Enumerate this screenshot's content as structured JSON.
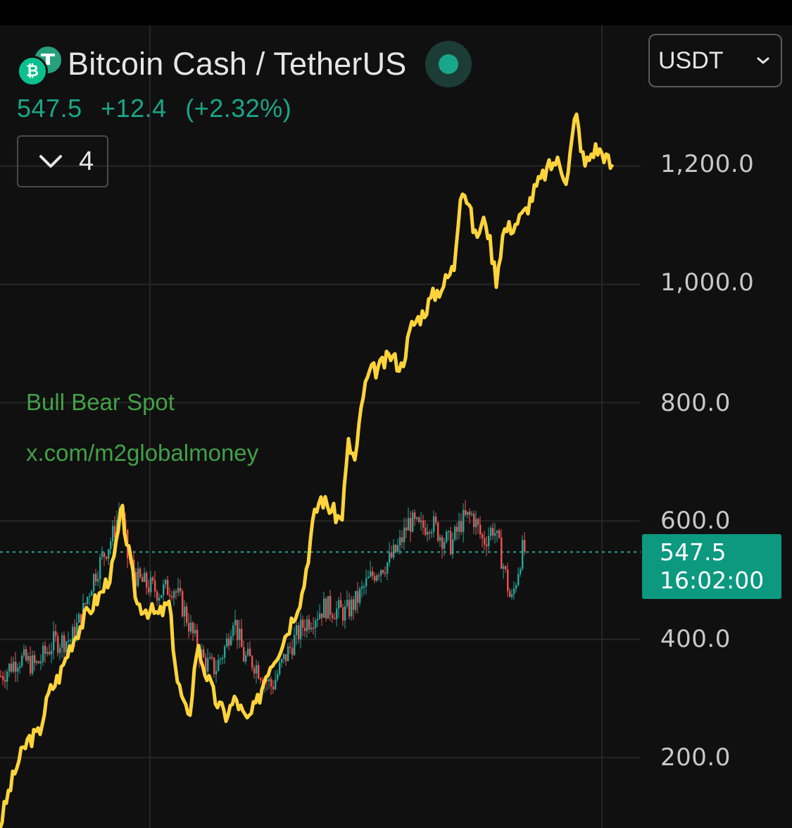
{
  "header": {
    "title": "Bitcoin Cash / TetherUS",
    "base_icon": "bitcoin-cash-icon",
    "quote_icon": "tether-icon",
    "live_status_color": "#1aa688"
  },
  "quote": {
    "last": "547.5",
    "change": "+12.4",
    "change_pct": "(+2.32%)"
  },
  "indicator_toggle": {
    "icon": "chevron-down-icon",
    "count": "4"
  },
  "currency_select": {
    "value": "USDT",
    "icon": "chevron-down-icon"
  },
  "watermark": {
    "line1": "Bull Bear Spot",
    "line2": "x.com/m2globalmoney"
  },
  "price_tag": {
    "price": "547.5",
    "countdown": "16:02:00",
    "color": "#0c9980"
  },
  "colors": {
    "up": "#26a69a",
    "down": "#ef5350",
    "overlay_line": "#ffd43b",
    "background": "#101010",
    "grid": "#262626"
  },
  "chart_data": {
    "type": "line",
    "y_ticks": [
      "1,200.0",
      "1,000.0",
      "800.0",
      "600.0",
      "400.0",
      "200.0"
    ],
    "y_tick_values": [
      1200,
      1000,
      800,
      600,
      400,
      200
    ],
    "ylim": [
      78,
      1312
    ],
    "grid": true,
    "current_price": 547.5,
    "series": [
      {
        "style": "candlestick",
        "values": [
          [
            0,
            338
          ],
          [
            25,
            368
          ],
          [
            50,
            355
          ],
          [
            75,
            395
          ],
          [
            100,
            400
          ],
          [
            115,
            440
          ],
          [
            130,
            500
          ],
          [
            145,
            540
          ],
          [
            160,
            578
          ],
          [
            170,
            625
          ],
          [
            180,
            540
          ],
          [
            195,
            500
          ],
          [
            210,
            490
          ],
          [
            225,
            480
          ],
          [
            245,
            490
          ],
          [
            260,
            450
          ],
          [
            275,
            400
          ],
          [
            290,
            360
          ],
          [
            305,
            350
          ],
          [
            320,
            390
          ],
          [
            330,
            440
          ],
          [
            345,
            370
          ],
          [
            360,
            360
          ],
          [
            375,
            335
          ],
          [
            385,
            320
          ],
          [
            400,
            360
          ],
          [
            415,
            395
          ],
          [
            430,
            425
          ],
          [
            445,
            440
          ],
          [
            460,
            455
          ],
          [
            475,
            450
          ],
          [
            490,
            445
          ],
          [
            505,
            465
          ],
          [
            520,
            495
          ],
          [
            535,
            520
          ],
          [
            550,
            530
          ],
          [
            565,
            555
          ],
          [
            580,
            600
          ],
          [
            595,
            585
          ],
          [
            610,
            600
          ],
          [
            625,
            575
          ],
          [
            640,
            560
          ],
          [
            655,
            600
          ],
          [
            670,
            610
          ],
          [
            685,
            565
          ],
          [
            700,
            590
          ],
          [
            715,
            520
          ],
          [
            725,
            460
          ],
          [
            740,
            550
          ],
          [
            746,
            547.5
          ]
        ]
      },
      {
        "style": "line",
        "values": [
          [
            0,
            85
          ],
          [
            12,
            140
          ],
          [
            25,
            190
          ],
          [
            40,
            230
          ],
          [
            55,
            240
          ],
          [
            70,
            310
          ],
          [
            85,
            340
          ],
          [
            100,
            390
          ],
          [
            115,
            425
          ],
          [
            130,
            455
          ],
          [
            145,
            480
          ],
          [
            160,
            520
          ],
          [
            173,
            620
          ],
          [
            185,
            530
          ],
          [
            195,
            460
          ],
          [
            210,
            450
          ],
          [
            225,
            440
          ],
          [
            240,
            460
          ],
          [
            252,
            330
          ],
          [
            268,
            260
          ],
          [
            280,
            390
          ],
          [
            292,
            345
          ],
          [
            305,
            300
          ],
          [
            320,
            270
          ],
          [
            335,
            300
          ],
          [
            350,
            260
          ],
          [
            365,
            290
          ],
          [
            380,
            350
          ],
          [
            395,
            380
          ],
          [
            410,
            420
          ],
          [
            430,
            480
          ],
          [
            445,
            600
          ],
          [
            455,
            640
          ],
          [
            470,
            620
          ],
          [
            485,
            600
          ],
          [
            495,
            730
          ],
          [
            505,
            700
          ],
          [
            515,
            810
          ],
          [
            525,
            850
          ],
          [
            540,
            860
          ],
          [
            555,
            880
          ],
          [
            570,
            860
          ],
          [
            585,
            930
          ],
          [
            600,
            950
          ],
          [
            615,
            980
          ],
          [
            630,
            1000
          ],
          [
            645,
            1030
          ],
          [
            655,
            1170
          ],
          [
            665,
            1140
          ],
          [
            675,
            1080
          ],
          [
            690,
            1110
          ],
          [
            705,
            1010
          ],
          [
            715,
            1090
          ],
          [
            730,
            1100
          ],
          [
            745,
            1120
          ],
          [
            760,
            1160
          ],
          [
            775,
            1190
          ],
          [
            790,
            1210
          ],
          [
            805,
            1180
          ],
          [
            818,
            1290
          ],
          [
            830,
            1200
          ],
          [
            845,
            1230
          ],
          [
            858,
            1220
          ],
          [
            870,
            1195
          ]
        ]
      }
    ]
  }
}
